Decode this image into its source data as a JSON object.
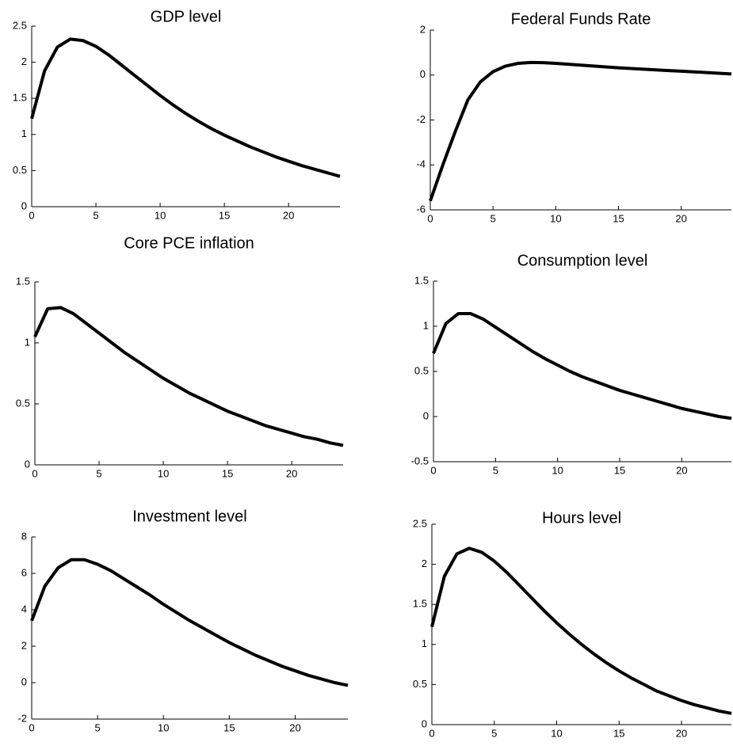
{
  "chart_data": [
    {
      "type": "line",
      "title": "GDP level",
      "x": [
        0,
        1,
        2,
        3,
        4,
        5,
        6,
        7,
        8,
        9,
        10,
        11,
        12,
        13,
        14,
        15,
        16,
        17,
        18,
        19,
        20,
        21,
        22,
        23,
        24
      ],
      "values": [
        1.22,
        1.88,
        2.21,
        2.32,
        2.3,
        2.22,
        2.1,
        1.96,
        1.82,
        1.68,
        1.54,
        1.41,
        1.29,
        1.18,
        1.08,
        0.99,
        0.91,
        0.83,
        0.76,
        0.69,
        0.63,
        0.57,
        0.52,
        0.47,
        0.42
      ],
      "color": "#000000",
      "xlim": [
        0,
        24
      ],
      "ylim": [
        0,
        2.5
      ],
      "xticks": [
        0,
        5,
        10,
        15,
        20
      ],
      "yticks": [
        0,
        0.5,
        1,
        1.5,
        2,
        2.5
      ]
    },
    {
      "type": "line",
      "title": "Federal Funds Rate",
      "x": [
        0,
        1,
        2,
        3,
        4,
        5,
        6,
        7,
        8,
        9,
        10,
        11,
        12,
        13,
        14,
        15,
        16,
        17,
        18,
        19,
        20,
        21,
        22,
        23,
        24
      ],
      "values": [
        -5.6,
        -4.0,
        -2.5,
        -1.1,
        -0.3,
        0.15,
        0.4,
        0.52,
        0.56,
        0.55,
        0.52,
        0.48,
        0.44,
        0.4,
        0.36,
        0.32,
        0.29,
        0.26,
        0.23,
        0.2,
        0.17,
        0.14,
        0.11,
        0.08,
        0.05
      ],
      "color": "#000000",
      "xlim": [
        0,
        24
      ],
      "ylim": [
        -6,
        2
      ],
      "xticks": [
        0,
        5,
        10,
        15,
        20
      ],
      "yticks": [
        -6,
        -4,
        -2,
        0,
        2
      ]
    },
    {
      "type": "line",
      "title": "Core PCE inflation",
      "x": [
        0,
        1,
        2,
        3,
        4,
        5,
        6,
        7,
        8,
        9,
        10,
        11,
        12,
        13,
        14,
        15,
        16,
        17,
        18,
        19,
        20,
        21,
        22,
        23,
        24
      ],
      "values": [
        1.05,
        1.28,
        1.29,
        1.24,
        1.16,
        1.08,
        1.0,
        0.92,
        0.85,
        0.78,
        0.71,
        0.65,
        0.59,
        0.54,
        0.49,
        0.44,
        0.4,
        0.36,
        0.32,
        0.29,
        0.26,
        0.23,
        0.21,
        0.18,
        0.16
      ],
      "color": "#000000",
      "xlim": [
        0,
        24
      ],
      "ylim": [
        0,
        1.5
      ],
      "xticks": [
        0,
        5,
        10,
        15,
        20
      ],
      "yticks": [
        0,
        0.5,
        1,
        1.5
      ]
    },
    {
      "type": "line",
      "title": "Consumption level",
      "x": [
        0,
        1,
        2,
        3,
        4,
        5,
        6,
        7,
        8,
        9,
        10,
        11,
        12,
        13,
        14,
        15,
        16,
        17,
        18,
        19,
        20,
        21,
        22,
        23,
        24
      ],
      "values": [
        0.7,
        1.03,
        1.14,
        1.14,
        1.08,
        0.99,
        0.9,
        0.81,
        0.72,
        0.64,
        0.57,
        0.5,
        0.44,
        0.39,
        0.34,
        0.29,
        0.25,
        0.21,
        0.17,
        0.13,
        0.09,
        0.06,
        0.03,
        0.0,
        -0.02
      ],
      "color": "#000000",
      "xlim": [
        0,
        24
      ],
      "ylim": [
        -0.5,
        1.5
      ],
      "xticks": [
        0,
        5,
        10,
        15,
        20
      ],
      "yticks": [
        -0.5,
        0,
        0.5,
        1,
        1.5
      ]
    },
    {
      "type": "line",
      "title": "Investment level",
      "x": [
        0,
        1,
        2,
        3,
        4,
        5,
        6,
        7,
        8,
        9,
        10,
        11,
        12,
        13,
        14,
        15,
        16,
        17,
        18,
        19,
        20,
        21,
        22,
        23,
        24
      ],
      "values": [
        3.4,
        5.3,
        6.3,
        6.75,
        6.75,
        6.5,
        6.15,
        5.7,
        5.25,
        4.8,
        4.3,
        3.85,
        3.4,
        3.0,
        2.6,
        2.2,
        1.85,
        1.5,
        1.2,
        0.9,
        0.65,
        0.4,
        0.2,
        0.0,
        -0.15
      ],
      "color": "#000000",
      "xlim": [
        0,
        24
      ],
      "ylim": [
        -2,
        8
      ],
      "xticks": [
        0,
        5,
        10,
        15,
        20
      ],
      "yticks": [
        -2,
        0,
        2,
        4,
        6,
        8
      ]
    },
    {
      "type": "line",
      "title": "Hours level",
      "x": [
        0,
        1,
        2,
        3,
        4,
        5,
        6,
        7,
        8,
        9,
        10,
        11,
        12,
        13,
        14,
        15,
        16,
        17,
        18,
        19,
        20,
        21,
        22,
        23,
        24
      ],
      "values": [
        1.22,
        1.85,
        2.13,
        2.2,
        2.15,
        2.04,
        1.9,
        1.74,
        1.58,
        1.42,
        1.27,
        1.13,
        1.0,
        0.88,
        0.77,
        0.67,
        0.58,
        0.5,
        0.42,
        0.36,
        0.3,
        0.25,
        0.21,
        0.17,
        0.14
      ],
      "color": "#000000",
      "xlim": [
        0,
        24
      ],
      "ylim": [
        0,
        2.5
      ],
      "xticks": [
        0,
        5,
        10,
        15,
        20
      ],
      "yticks": [
        0,
        0.5,
        1,
        1.5,
        2,
        2.5
      ]
    }
  ]
}
